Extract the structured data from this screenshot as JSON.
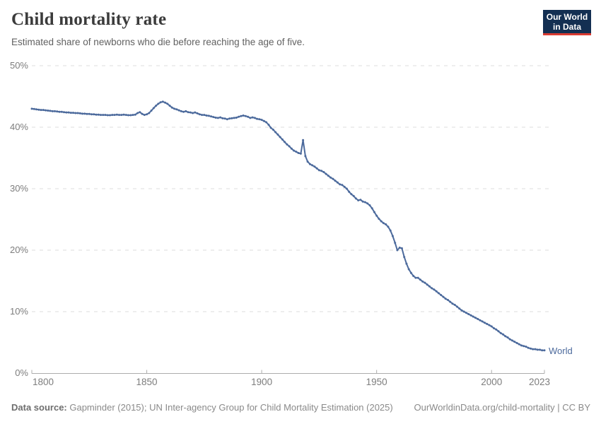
{
  "header": {
    "title": "Child mortality rate",
    "subtitle": "Estimated share of newborns who die before reaching the age of five.",
    "logo": {
      "line1": "Our World",
      "line2": "in Data"
    }
  },
  "chart_data": {
    "type": "line",
    "title": "Child mortality rate",
    "xlabel": "",
    "ylabel": "",
    "xlim": [
      1800,
      2023
    ],
    "ylim": [
      0,
      50
    ],
    "grid": "horizontal-dashed",
    "legend_position": "end-of-line-label",
    "x_ticks": [
      1800,
      1850,
      1900,
      1950,
      2000,
      2023
    ],
    "y_ticks": [
      0,
      10,
      20,
      30,
      40,
      50
    ],
    "y_tick_suffix": "%",
    "end_label": "World",
    "series": [
      {
        "name": "World",
        "x_start": 1800,
        "x_step": 1,
        "values": [
          43.0,
          42.95,
          42.9,
          42.85,
          42.8,
          42.8,
          42.75,
          42.7,
          42.65,
          42.6,
          42.6,
          42.55,
          42.5,
          42.5,
          42.45,
          42.4,
          42.4,
          42.35,
          42.35,
          42.3,
          42.3,
          42.25,
          42.2,
          42.2,
          42.15,
          42.15,
          42.1,
          42.1,
          42.05,
          42.05,
          42.0,
          42.0,
          42.0,
          41.95,
          41.95,
          42.0,
          42.0,
          42.05,
          42.0,
          42.0,
          42.05,
          42.0,
          41.95,
          41.95,
          42.0,
          42.05,
          42.3,
          42.45,
          42.15,
          42.0,
          42.1,
          42.3,
          42.7,
          43.1,
          43.5,
          43.8,
          44.05,
          44.15,
          44.0,
          43.8,
          43.5,
          43.2,
          43.0,
          42.9,
          42.75,
          42.6,
          42.5,
          42.6,
          42.45,
          42.4,
          42.3,
          42.4,
          42.25,
          42.1,
          42.0,
          42.0,
          41.9,
          41.85,
          41.75,
          41.65,
          41.55,
          41.5,
          41.6,
          41.45,
          41.4,
          41.3,
          41.4,
          41.45,
          41.5,
          41.55,
          41.7,
          41.8,
          41.9,
          41.8,
          41.7,
          41.5,
          41.6,
          41.5,
          41.35,
          41.3,
          41.2,
          41.0,
          40.8,
          40.4,
          39.9,
          39.6,
          39.2,
          38.8,
          38.4,
          38.0,
          37.6,
          37.2,
          36.9,
          36.5,
          36.2,
          36.0,
          35.8,
          35.7,
          37.9,
          35.3,
          34.4,
          34.0,
          33.8,
          33.6,
          33.3,
          33.0,
          32.9,
          32.7,
          32.4,
          32.1,
          31.8,
          31.6,
          31.3,
          31.0,
          30.7,
          30.6,
          30.3,
          30.0,
          29.5,
          29.1,
          28.8,
          28.4,
          28.1,
          28.2,
          27.9,
          27.8,
          27.6,
          27.3,
          26.8,
          26.2,
          25.6,
          25.1,
          24.7,
          24.4,
          24.2,
          23.8,
          23.2,
          22.3,
          21.2,
          20.0,
          20.4,
          20.3,
          18.9,
          17.8,
          16.9,
          16.3,
          15.8,
          15.5,
          15.5,
          15.2,
          14.9,
          14.7,
          14.4,
          14.1,
          13.8,
          13.6,
          13.3,
          13.0,
          12.7,
          12.4,
          12.1,
          11.9,
          11.6,
          11.3,
          11.1,
          10.8,
          10.5,
          10.2,
          10.0,
          9.8,
          9.6,
          9.4,
          9.2,
          9.0,
          8.8,
          8.6,
          8.4,
          8.2,
          8.0,
          7.8,
          7.6,
          7.3,
          7.1,
          6.8,
          6.5,
          6.3,
          6.0,
          5.8,
          5.5,
          5.3,
          5.1,
          4.9,
          4.7,
          4.5,
          4.4,
          4.3,
          4.1,
          4.0,
          3.9,
          3.9,
          3.8,
          3.8,
          3.7,
          3.7
        ]
      }
    ]
  },
  "colors": {
    "line": "#4C6A9C",
    "end_label": "#4C6A9C",
    "grid": "#DEDEDE",
    "axis": "#ADADAD",
    "tick_label": "#7D7D7D",
    "logo_bg": "#132F52",
    "logo_underline": "#D93B32"
  },
  "footer": {
    "source_label": "Data source:",
    "source_text": " Gapminder (2015); UN Inter-agency Group for Child Mortality Estimation (2025)",
    "link_text": "OurWorldinData.org/child-mortality | CC BY"
  }
}
